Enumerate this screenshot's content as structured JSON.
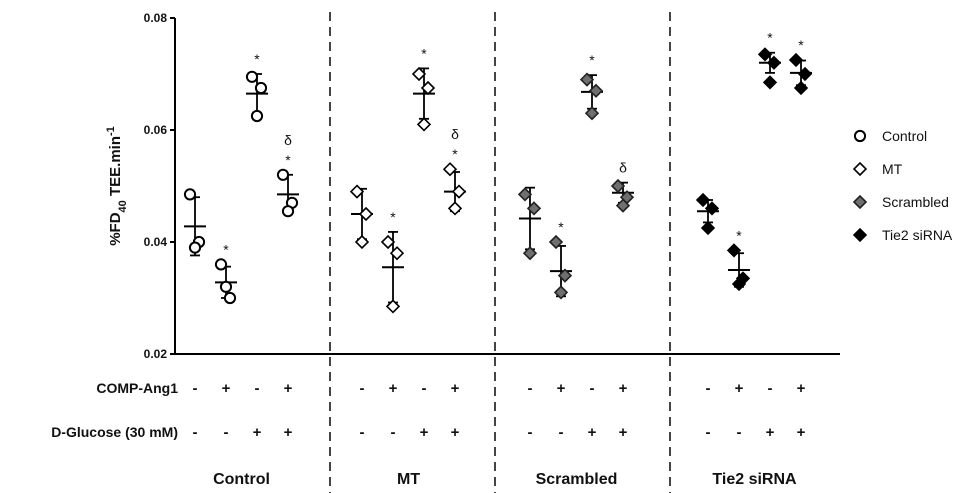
{
  "chart_data": {
    "type": "scatter",
    "ylabel": "%FD40 TEE.min-1",
    "ylabel_parts": {
      "main": "%FD",
      "sub": "40",
      "mid": " TEE.min",
      "sup": "-1"
    },
    "ylim": [
      0.02,
      0.08
    ],
    "yticks": [
      "0.02",
      "0.04",
      "0.06",
      "0.08"
    ],
    "grid": false,
    "legend_position": "right",
    "legend": [
      {
        "name": "Control",
        "marker": "circle-open"
      },
      {
        "name": "MT",
        "marker": "diamond-open"
      },
      {
        "name": "Scrambled",
        "marker": "diamond-gray"
      },
      {
        "name": "Tie2 siRNA",
        "marker": "diamond-black"
      }
    ],
    "row_labels": [
      "COMP-Ang1",
      "D-Glucose (30 mM)"
    ],
    "conditions": [
      {
        "comp": "-",
        "glucose": "-"
      },
      {
        "comp": "+",
        "glucose": "-"
      },
      {
        "comp": "-",
        "glucose": "+"
      },
      {
        "comp": "+",
        "glucose": "+"
      }
    ],
    "groups": [
      {
        "name": "Control",
        "marker": "circle-open",
        "points": [
          [
            0.0485,
            0.04,
            0.039
          ],
          [
            0.036,
            0.03,
            0.032
          ],
          [
            0.0695,
            0.0675,
            0.0625
          ],
          [
            0.052,
            0.047,
            0.0455
          ]
        ],
        "mean": [
          0.0428,
          0.0328,
          0.0665,
          0.0485
        ],
        "sd": [
          0.0052,
          0.0028,
          0.0035,
          0.0035
        ],
        "annotations": [
          "",
          "*",
          "*",
          "δ *"
        ]
      },
      {
        "name": "MT",
        "marker": "diamond-open",
        "points": [
          [
            0.049,
            0.045,
            0.04
          ],
          [
            0.04,
            0.038,
            0.0285
          ],
          [
            0.07,
            0.0675,
            0.061
          ],
          [
            0.053,
            0.049,
            0.046
          ]
        ],
        "mean": [
          0.045,
          0.0355,
          0.0665,
          0.049
        ],
        "sd": [
          0.0045,
          0.0063,
          0.0045,
          0.0035
        ],
        "annotations": [
          "",
          "*",
          "*",
          "δ *"
        ]
      },
      {
        "name": "Scrambled",
        "marker": "diamond-gray",
        "points": [
          [
            0.0485,
            0.046,
            0.038
          ],
          [
            0.04,
            0.034,
            0.031
          ],
          [
            0.069,
            0.067,
            0.063
          ],
          [
            0.05,
            0.048,
            0.0465
          ]
        ],
        "mean": [
          0.0442,
          0.0348,
          0.0668,
          0.0488
        ],
        "sd": [
          0.0055,
          0.0045,
          0.003,
          0.0018
        ],
        "annotations": [
          "",
          "*",
          "*",
          "δ"
        ]
      },
      {
        "name": "Tie2 siRNA",
        "marker": "diamond-black",
        "points": [
          [
            0.0475,
            0.046,
            0.0425
          ],
          [
            0.0385,
            0.0335,
            0.0325
          ],
          [
            0.0735,
            0.072,
            0.0685
          ],
          [
            0.0725,
            0.07,
            0.0675
          ]
        ],
        "mean": [
          0.0455,
          0.035,
          0.072,
          0.0702
        ],
        "sd": [
          0.002,
          0.003,
          0.0018,
          0.0022
        ],
        "annotations": [
          "",
          "*",
          "*",
          "*"
        ]
      }
    ]
  }
}
